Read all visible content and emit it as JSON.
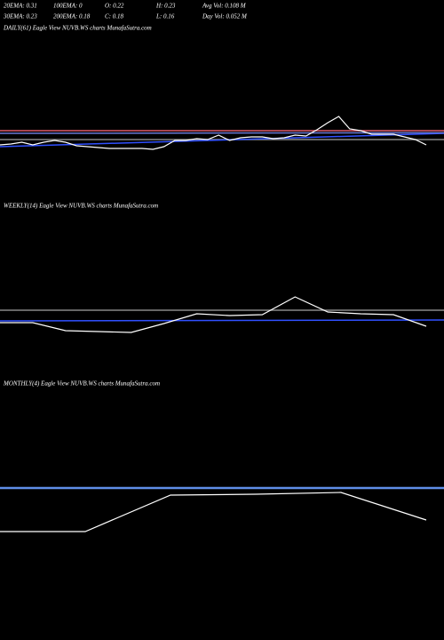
{
  "header": {
    "row1": [
      "20EMA: 0.31",
      "100EMA: 0",
      "O: 0.22",
      "H: 0.23",
      "Avg Vol: 0.108 M"
    ],
    "row2": [
      "30EMA: 0.23",
      "200EMA: 0.18",
      "C: 0.18",
      "L: 0.16",
      "Day Vol: 0.052 M"
    ]
  },
  "chart_data": [
    {
      "type": "line",
      "title": "DAILY(61) Eagle  View  NUVB.WS charts MunafaSutra.com",
      "ylim": [
        0.1,
        0.4
      ],
      "color": "#ffffff",
      "values": [
        0.211,
        0.214,
        0.22,
        0.211,
        0.22,
        0.226,
        0.22,
        0.208,
        0.205,
        0.202,
        0.199,
        0.199,
        0.199,
        0.199,
        0.196,
        0.205,
        0.226,
        0.226,
        0.232,
        0.229,
        0.244,
        0.226,
        0.235,
        0.238,
        0.238,
        0.232,
        0.235,
        0.244,
        0.241,
        0.262,
        0.286,
        0.307,
        0.265,
        0.259,
        0.247,
        0.247,
        0.247,
        0.238,
        0.229,
        0.211
      ],
      "ema_lines": [
        {
          "color": "#e05a6a",
          "values": [
            0.259,
            0.259
          ]
        },
        {
          "color": "#888888",
          "values": [
            0.229,
            0.229
          ]
        },
        {
          "color": "#3050ff",
          "values": [
            0.205,
            0.25
          ]
        },
        {
          "color": "#6a7ad8",
          "values": [
            0.25,
            0.252
          ]
        }
      ]
    },
    {
      "type": "line",
      "title": "WEEKLY(14) Eagle  View  NUVB.WS charts MunafaSutra.com",
      "ylim": [
        0.1,
        0.4
      ],
      "color": "#ffffff",
      "values": [
        0.211,
        0.211,
        0.184,
        0.181,
        0.178,
        0.208,
        0.241,
        0.235,
        0.238,
        0.298,
        0.247,
        0.241,
        0.238,
        0.199
      ],
      "ema_lines": [
        {
          "color": "#888888",
          "values": [
            0.253,
            0.253
          ]
        },
        {
          "color": "#3050ff",
          "values": [
            0.217,
            0.22
          ]
        }
      ]
    },
    {
      "type": "line",
      "title": "MONTHLY(4) Eagle  View  NUVB.WS charts MunafaSutra.com",
      "ylim": [
        0.1,
        0.4
      ],
      "color": "#ffffff",
      "values": [
        0.106,
        0.106,
        0.229,
        0.232,
        0.238,
        0.145
      ],
      "ema_lines": [
        {
          "color": "#5f8ee8",
          "values": [
            0.253,
            0.253
          ]
        }
      ]
    }
  ]
}
